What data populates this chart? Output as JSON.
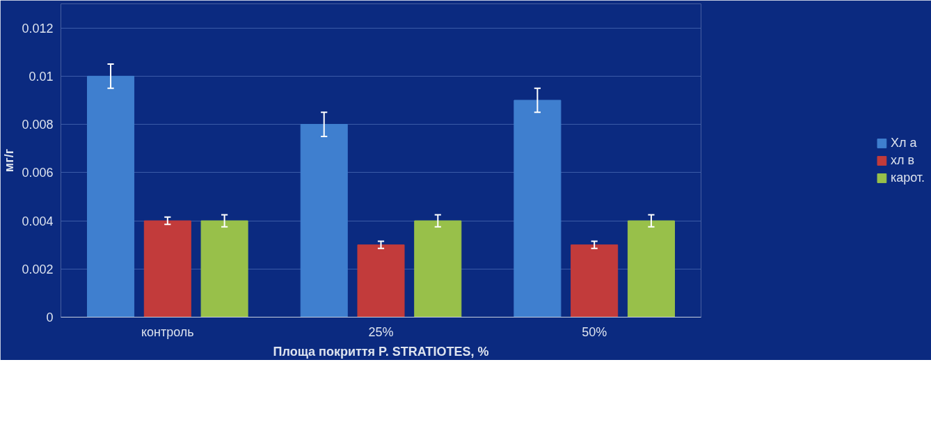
{
  "chart_data": {
    "type": "bar",
    "xlabel": "Площа покриття P. STRATIOTES, %",
    "ylabel": "мг/г",
    "categories": [
      "контроль",
      "25%",
      "50%"
    ],
    "series": [
      {
        "name": "Хл а",
        "color": "#3f7fcf",
        "values": [
          0.01,
          0.008,
          0.009
        ],
        "errors": [
          0.0005,
          0.0005,
          0.0005
        ]
      },
      {
        "name": "хл в",
        "color": "#c23b3b",
        "values": [
          0.004,
          0.003,
          0.003
        ],
        "errors": [
          0.00015,
          0.00015,
          0.00015
        ]
      },
      {
        "name": "карот.",
        "color": "#98c04a",
        "values": [
          0.004,
          0.004,
          0.004
        ],
        "errors": [
          0.00025,
          0.00025,
          0.00025
        ]
      }
    ],
    "ylim": [
      0,
      0.013
    ],
    "yticks": [
      {
        "value": 0,
        "label": "0"
      },
      0.002,
      0.004,
      0.006,
      0.008,
      {
        "value": 0.01,
        "label": "0.01"
      },
      0.012
    ],
    "grid": "y",
    "legend": "right"
  }
}
